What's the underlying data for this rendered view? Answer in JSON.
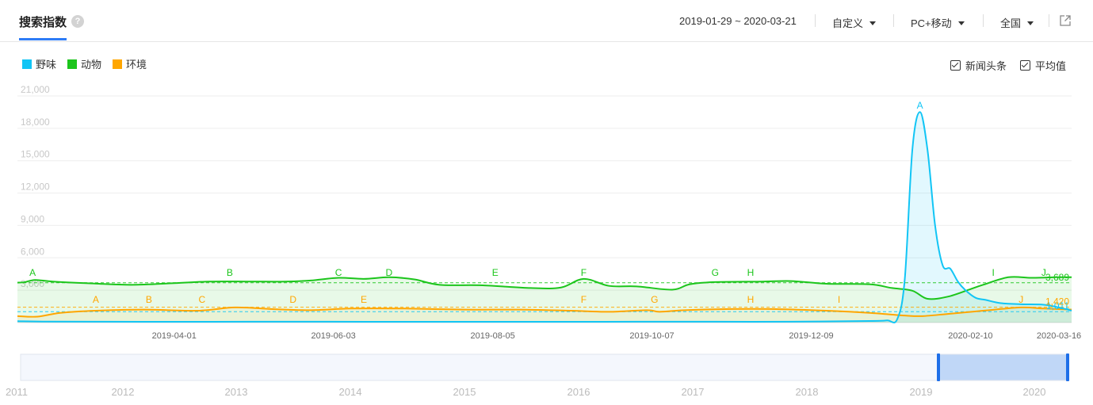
{
  "header": {
    "title": "搜索指数",
    "help_icon": "?",
    "date_range": "2019-01-29 ~ 2020-03-21",
    "period_select": "自定义",
    "device_select": "PC+移动",
    "region_select": "全国",
    "export_icon": "export-icon"
  },
  "legend": [
    {
      "label": "野味",
      "color": "#12c5f5"
    },
    {
      "label": "动物",
      "color": "#1cc51c"
    },
    {
      "label": "环境",
      "color": "#ffa600"
    }
  ],
  "options": {
    "news": "新闻头条",
    "average": "平均值"
  },
  "navigator": {
    "years": [
      "2011",
      "2012",
      "2013",
      "2014",
      "2015",
      "2016",
      "2017",
      "2018",
      "2019",
      "2020"
    ]
  },
  "chart_data": {
    "type": "line",
    "ylim": [
      0,
      21000
    ],
    "yticks": [
      "3,000",
      "6,000",
      "9,000",
      "12,000",
      "15,000",
      "18,000",
      "21,000"
    ],
    "x_start": "2019-01-29",
    "x_end": "2020-03-21",
    "x_ticks": [
      "2019-04-01",
      "2019-06-03",
      "2019-08-05",
      "2019-10-07",
      "2019-12-09",
      "2020-02-10",
      "2020-03-16"
    ],
    "series": [
      {
        "name": "野味",
        "color": "#12c5f5",
        "average": "1,011",
        "x": [
          "2019-01-29",
          "2019-02-10",
          "2019-03-01",
          "2019-04-01",
          "2019-05-01",
          "2019-06-01",
          "2019-07-01",
          "2019-08-01",
          "2019-09-01",
          "2019-10-01",
          "2019-11-01",
          "2019-12-01",
          "2020-01-01",
          "2020-01-08",
          "2020-01-12",
          "2020-01-15",
          "2020-01-18",
          "2020-01-21",
          "2020-01-24",
          "2020-01-27",
          "2020-01-30",
          "2020-02-02",
          "2020-02-05",
          "2020-02-08",
          "2020-02-12",
          "2020-02-16",
          "2020-02-22",
          "2020-03-01",
          "2020-03-10",
          "2020-03-16",
          "2020-03-21"
        ],
        "values": [
          130,
          90,
          80,
          70,
          80,
          80,
          75,
          75,
          70,
          80,
          80,
          80,
          150,
          200,
          300,
          4000,
          16000,
          19500,
          16000,
          9000,
          5300,
          5000,
          3800,
          3000,
          2300,
          2100,
          1800,
          1700,
          1650,
          1400,
          1100
        ]
      },
      {
        "name": "动物",
        "color": "#1cc51c",
        "average": "3,689",
        "x": [
          "2019-01-29",
          "2019-02-01",
          "2019-02-05",
          "2019-02-12",
          "2019-02-25",
          "2019-03-15",
          "2019-04-01",
          "2019-04-15",
          "2019-05-01",
          "2019-05-15",
          "2019-05-25",
          "2019-06-05",
          "2019-06-15",
          "2019-06-25",
          "2019-07-05",
          "2019-07-15",
          "2019-08-01",
          "2019-08-20",
          "2019-09-01",
          "2019-09-10",
          "2019-09-20",
          "2019-10-01",
          "2019-10-15",
          "2019-10-22",
          "2019-11-01",
          "2019-11-20",
          "2019-12-01",
          "2019-12-15",
          "2020-01-01",
          "2020-01-10",
          "2020-01-18",
          "2020-01-24",
          "2020-02-01",
          "2020-02-10",
          "2020-02-15",
          "2020-02-25",
          "2020-03-05",
          "2020-03-15",
          "2020-03-21"
        ],
        "values": [
          3700,
          3750,
          3950,
          3800,
          3650,
          3500,
          3650,
          3800,
          3800,
          3800,
          3900,
          4150,
          4050,
          4200,
          4000,
          3500,
          3450,
          3200,
          3250,
          4050,
          3400,
          3350,
          3050,
          3550,
          3750,
          3800,
          3850,
          3600,
          3550,
          3200,
          2950,
          2200,
          2400,
          3100,
          3500,
          4200,
          4150,
          4200,
          4200
        ]
      },
      {
        "name": "环境",
        "color": "#ffa600",
        "average": "1,420",
        "x": [
          "2019-01-29",
          "2019-02-06",
          "2019-02-15",
          "2019-03-01",
          "2019-03-20",
          "2019-04-10",
          "2019-04-25",
          "2019-05-10",
          "2019-05-25",
          "2019-06-10",
          "2019-07-01",
          "2019-07-25",
          "2019-08-15",
          "2019-09-05",
          "2019-09-20",
          "2019-10-05",
          "2019-10-10",
          "2019-10-20",
          "2019-11-05",
          "2019-11-25",
          "2019-12-15",
          "2020-01-01",
          "2020-01-15",
          "2020-01-22",
          "2020-02-01",
          "2020-02-15",
          "2020-03-01",
          "2020-03-10",
          "2020-03-21"
        ],
        "values": [
          600,
          550,
          900,
          1100,
          1200,
          1100,
          1400,
          1250,
          1150,
          1300,
          1300,
          1200,
          1200,
          1100,
          1000,
          1150,
          1000,
          1150,
          1250,
          1250,
          1100,
          900,
          650,
          600,
          800,
          1100,
          1400,
          1300,
          1200
        ]
      }
    ],
    "markers": [
      {
        "series": 1,
        "labels": [
          {
            "text": "A",
            "date": "2019-02-04"
          },
          {
            "text": "B",
            "date": "2019-04-23"
          },
          {
            "text": "C",
            "date": "2019-06-05"
          },
          {
            "text": "D",
            "date": "2019-06-25"
          },
          {
            "text": "E",
            "date": "2019-08-06"
          },
          {
            "text": "F",
            "date": "2019-09-10"
          },
          {
            "text": "G",
            "date": "2019-11-01"
          },
          {
            "text": "H",
            "date": "2019-11-15"
          },
          {
            "text": "I",
            "date": "2020-02-19"
          },
          {
            "text": "J",
            "date": "2020-03-10"
          }
        ]
      },
      {
        "series": 2,
        "labels": [
          {
            "text": "A",
            "date": "2019-03-01"
          },
          {
            "text": "B",
            "date": "2019-03-22"
          },
          {
            "text": "C",
            "date": "2019-04-12"
          },
          {
            "text": "D",
            "date": "2019-05-18"
          },
          {
            "text": "E",
            "date": "2019-06-15"
          },
          {
            "text": "F",
            "date": "2019-09-10"
          },
          {
            "text": "G",
            "date": "2019-10-08"
          },
          {
            "text": "H",
            "date": "2019-11-15"
          },
          {
            "text": "I",
            "date": "2019-12-20"
          },
          {
            "text": "J",
            "date": "2020-03-01"
          }
        ]
      },
      {
        "series": 0,
        "labels": [
          {
            "text": "A",
            "date": "2020-01-21"
          }
        ]
      }
    ]
  }
}
